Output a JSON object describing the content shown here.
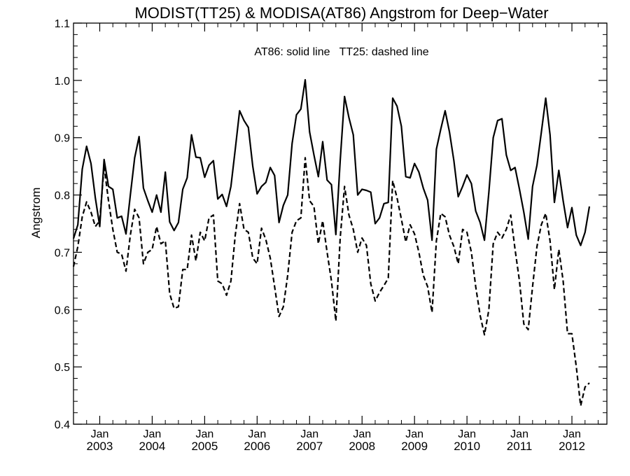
{
  "chart_data": {
    "type": "line",
    "title": "MODIST(TT25) & MODISA(AT86)  Angstrom for Deep−Water",
    "annotation": "AT86: solid line   TT25: dashed line",
    "ylabel": "Angstrom",
    "xlabel": "",
    "ylim": [
      0.4,
      1.1
    ],
    "y_ticks": [
      0.4,
      0.5,
      0.6,
      0.7,
      0.8,
      0.9,
      1.0,
      1.1
    ],
    "y_tick_labels": [
      "0.4",
      "0.5",
      "0.6",
      "0.7",
      "0.8",
      "0.9",
      "1.0",
      "1.1"
    ],
    "x_axis": {
      "start": "2002-07",
      "end": "2012-09",
      "ticks": [
        {
          "month_label": "Jan",
          "year_label": "2003",
          "date": "2003-01"
        },
        {
          "month_label": "Jan",
          "year_label": "2004",
          "date": "2004-01"
        },
        {
          "month_label": "Jan",
          "year_label": "2005",
          "date": "2005-01"
        },
        {
          "month_label": "Jan",
          "year_label": "2006",
          "date": "2006-01"
        },
        {
          "month_label": "Jan",
          "year_label": "2007",
          "date": "2007-01"
        },
        {
          "month_label": "Jan",
          "year_label": "2008",
          "date": "2008-01"
        },
        {
          "month_label": "Jan",
          "year_label": "2009",
          "date": "2009-01"
        },
        {
          "month_label": "Jan",
          "year_label": "2010",
          "date": "2010-01"
        },
        {
          "month_label": "Jan",
          "year_label": "2011",
          "date": "2011-01"
        },
        {
          "month_label": "Jan",
          "year_label": "2012",
          "date": "2012-01"
        }
      ]
    },
    "grid": false,
    "legend": "none",
    "series": [
      {
        "name": "AT86",
        "style": "solid",
        "color": "#000000",
        "start": "2002-07",
        "values": [
          0.724,
          0.748,
          0.845,
          0.885,
          0.855,
          0.795,
          0.745,
          0.862,
          0.815,
          0.81,
          0.76,
          0.763,
          0.732,
          0.8,
          0.865,
          0.902,
          0.812,
          0.79,
          0.77,
          0.8,
          0.77,
          0.84,
          0.753,
          0.738,
          0.752,
          0.81,
          0.83,
          0.905,
          0.866,
          0.865,
          0.831,
          0.852,
          0.86,
          0.793,
          0.801,
          0.78,
          0.815,
          0.88,
          0.947,
          0.93,
          0.918,
          0.85,
          0.802,
          0.815,
          0.822,
          0.848,
          0.834,
          0.752,
          0.782,
          0.8,
          0.89,
          0.94,
          0.95,
          1.001,
          0.91,
          0.87,
          0.832,
          0.893,
          0.826,
          0.818,
          0.731,
          0.86,
          0.972,
          0.935,
          0.905,
          0.8,
          0.81,
          0.808,
          0.805,
          0.75,
          0.76,
          0.785,
          0.787,
          0.969,
          0.955,
          0.92,
          0.832,
          0.83,
          0.855,
          0.84,
          0.812,
          0.791,
          0.721,
          0.88,
          0.915,
          0.947,
          0.91,
          0.86,
          0.797,
          0.815,
          0.835,
          0.82,
          0.772,
          0.752,
          0.721,
          0.805,
          0.9,
          0.93,
          0.933,
          0.87,
          0.843,
          0.848,
          0.81,
          0.77,
          0.723,
          0.815,
          0.852,
          0.909,
          0.969,
          0.905,
          0.787,
          0.843,
          0.79,
          0.743,
          0.778,
          0.73,
          0.712,
          0.735,
          0.78
        ]
      },
      {
        "name": "TT25",
        "style": "dashed",
        "color": "#000000",
        "start": "2002-07",
        "values": [
          0.675,
          0.71,
          0.762,
          0.788,
          0.77,
          0.745,
          0.755,
          0.85,
          0.79,
          0.74,
          0.7,
          0.697,
          0.667,
          0.73,
          0.775,
          0.76,
          0.68,
          0.7,
          0.705,
          0.745,
          0.715,
          0.72,
          0.628,
          0.602,
          0.605,
          0.67,
          0.67,
          0.73,
          0.685,
          0.735,
          0.72,
          0.76,
          0.765,
          0.65,
          0.645,
          0.625,
          0.65,
          0.73,
          0.785,
          0.74,
          0.735,
          0.69,
          0.68,
          0.742,
          0.722,
          0.69,
          0.64,
          0.588,
          0.605,
          0.66,
          0.735,
          0.755,
          0.76,
          0.865,
          0.79,
          0.78,
          0.715,
          0.755,
          0.7,
          0.65,
          0.58,
          0.725,
          0.815,
          0.765,
          0.74,
          0.7,
          0.725,
          0.712,
          0.645,
          0.615,
          0.63,
          0.642,
          0.655,
          0.825,
          0.795,
          0.758,
          0.718,
          0.748,
          0.732,
          0.7,
          0.66,
          0.64,
          0.595,
          0.72,
          0.768,
          0.762,
          0.73,
          0.71,
          0.68,
          0.74,
          0.735,
          0.7,
          0.64,
          0.59,
          0.556,
          0.6,
          0.715,
          0.735,
          0.725,
          0.74,
          0.765,
          0.705,
          0.65,
          0.575,
          0.565,
          0.64,
          0.71,
          0.748,
          0.768,
          0.72,
          0.635,
          0.705,
          0.65,
          0.558,
          0.558,
          0.5,
          0.432,
          0.465,
          0.472
        ]
      }
    ]
  }
}
